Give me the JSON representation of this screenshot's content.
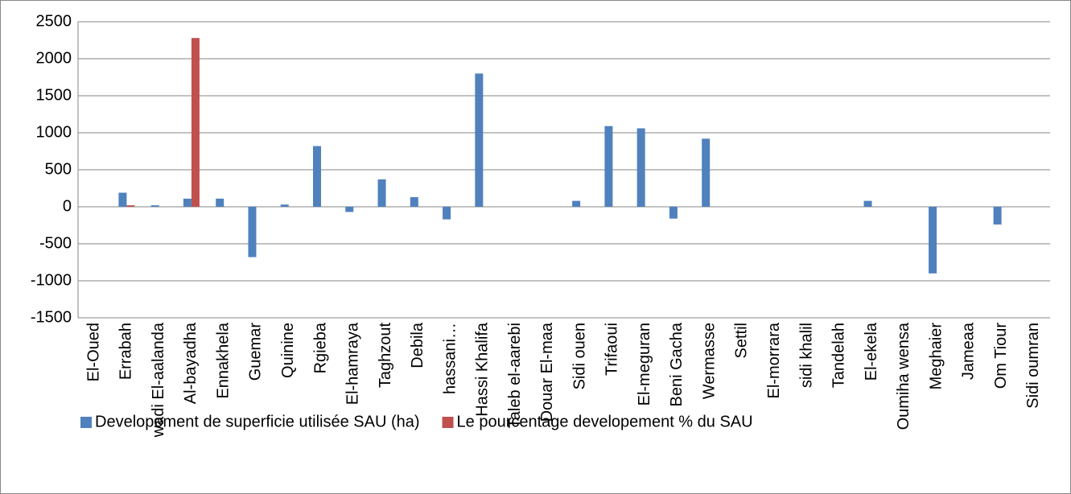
{
  "chart_data": {
    "type": "bar",
    "categories": [
      "El-Oued",
      "Errabah",
      "wadi El-aalanda",
      "Al-bayadha",
      "Ennakhela",
      "Guemar",
      "Quinine",
      "Rgieba",
      "El-hamraya",
      "Taghzout",
      "Debila",
      "hassani…",
      "Hassi Khalifa",
      "Taleb el-aarebi",
      "Douar El-maa",
      "Sidi ouen",
      "Trifaoui",
      "El-meguran",
      "Beni Gacha",
      "Wermasse",
      "Settil",
      "El-morrara",
      "sidi khalil",
      "Tandelah",
      "El-ekela",
      "Oumiha wensa",
      "Meghaier",
      "Jameaa",
      "Om Tiour",
      "Sidi oumran"
    ],
    "series": [
      {
        "name": "Developement de superficie utilisée SAU (ha)",
        "color": "#4f81bd",
        "values": [
          0,
          190,
          20,
          110,
          110,
          -680,
          30,
          820,
          -70,
          370,
          130,
          -170,
          1800,
          0,
          0,
          80,
          1090,
          1060,
          -160,
          920,
          0,
          0,
          0,
          0,
          80,
          0,
          -900,
          0,
          -240,
          0
        ]
      },
      {
        "name": "Le pourcentage  developement % du SAU",
        "color": "#c0504d",
        "values": [
          0,
          20,
          0,
          2280,
          0,
          0,
          0,
          0,
          0,
          0,
          0,
          0,
          0,
          0,
          0,
          0,
          0,
          0,
          0,
          0,
          0,
          0,
          0,
          0,
          0,
          0,
          0,
          0,
          0,
          0
        ]
      }
    ],
    "ylim": [
      -1500,
      2500
    ],
    "yticks": [
      -1500,
      -1000,
      -500,
      0,
      500,
      1000,
      1500,
      2000,
      2500
    ],
    "grid": true
  }
}
